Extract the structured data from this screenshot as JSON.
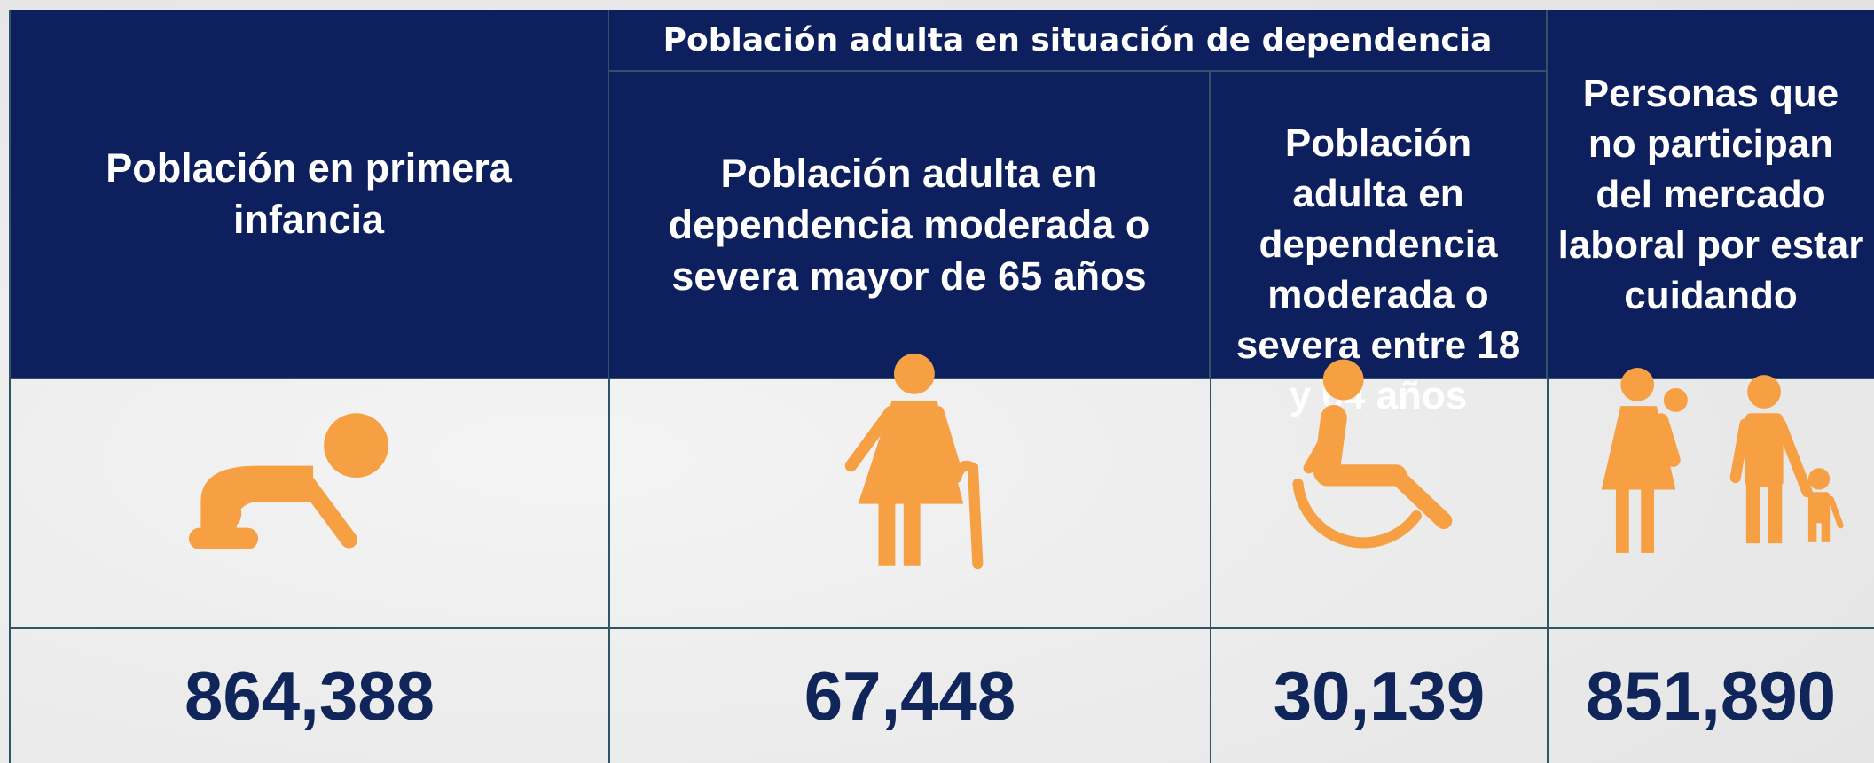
{
  "header": {
    "group": "Población adulta en situación de dependencia"
  },
  "table": {
    "headers": [
      "Población en primera infancia",
      "Población adulta en dependencia moderada o severa mayor de 65 años",
      "Población adulta en dependencia moderada o severa entre 18 y 64 años",
      "Personas que no participan del mercado laboral por estar cuidando"
    ],
    "values": [
      "864,388",
      "67,448",
      "30,139",
      "851,890"
    ]
  }
}
